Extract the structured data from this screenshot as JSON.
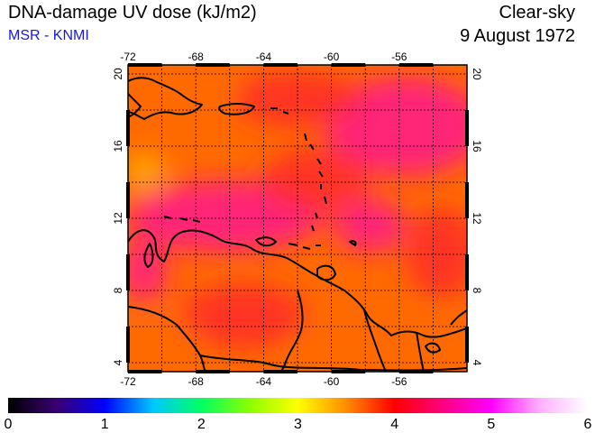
{
  "header": {
    "title": "DNA-damage UV dose (kJ/m2)",
    "source": "MSR - KNMI",
    "mode": "Clear-sky",
    "date": "9 August 1972"
  },
  "map": {
    "lon_ticks": [
      "-72",
      "-68",
      "-64",
      "-60",
      "-56"
    ],
    "lat_ticks": [
      "4",
      "8",
      "12",
      "16",
      "20"
    ],
    "lon_range": [
      -72,
      -52
    ],
    "lat_range": [
      3.5,
      20.5
    ],
    "grid": true,
    "field_colors": {
      "orange": "#ff6a00",
      "red": "#ff2a2a",
      "magenta": "#ff1a8c",
      "yellow": "#ffb400"
    },
    "coastline_color": "#000000"
  },
  "colorbar": {
    "labels": [
      "0",
      "1",
      "2",
      "3",
      "4",
      "5",
      "6"
    ],
    "range": [
      0,
      6
    ],
    "colors": [
      "#000000",
      "#3a0070",
      "#0000ff",
      "#00c8ff",
      "#00ff64",
      "#8cff00",
      "#ffff00",
      "#ff8c00",
      "#ff0000",
      "#ff0080",
      "#ff00ff",
      "#ffb0ff",
      "#ffffff"
    ]
  }
}
